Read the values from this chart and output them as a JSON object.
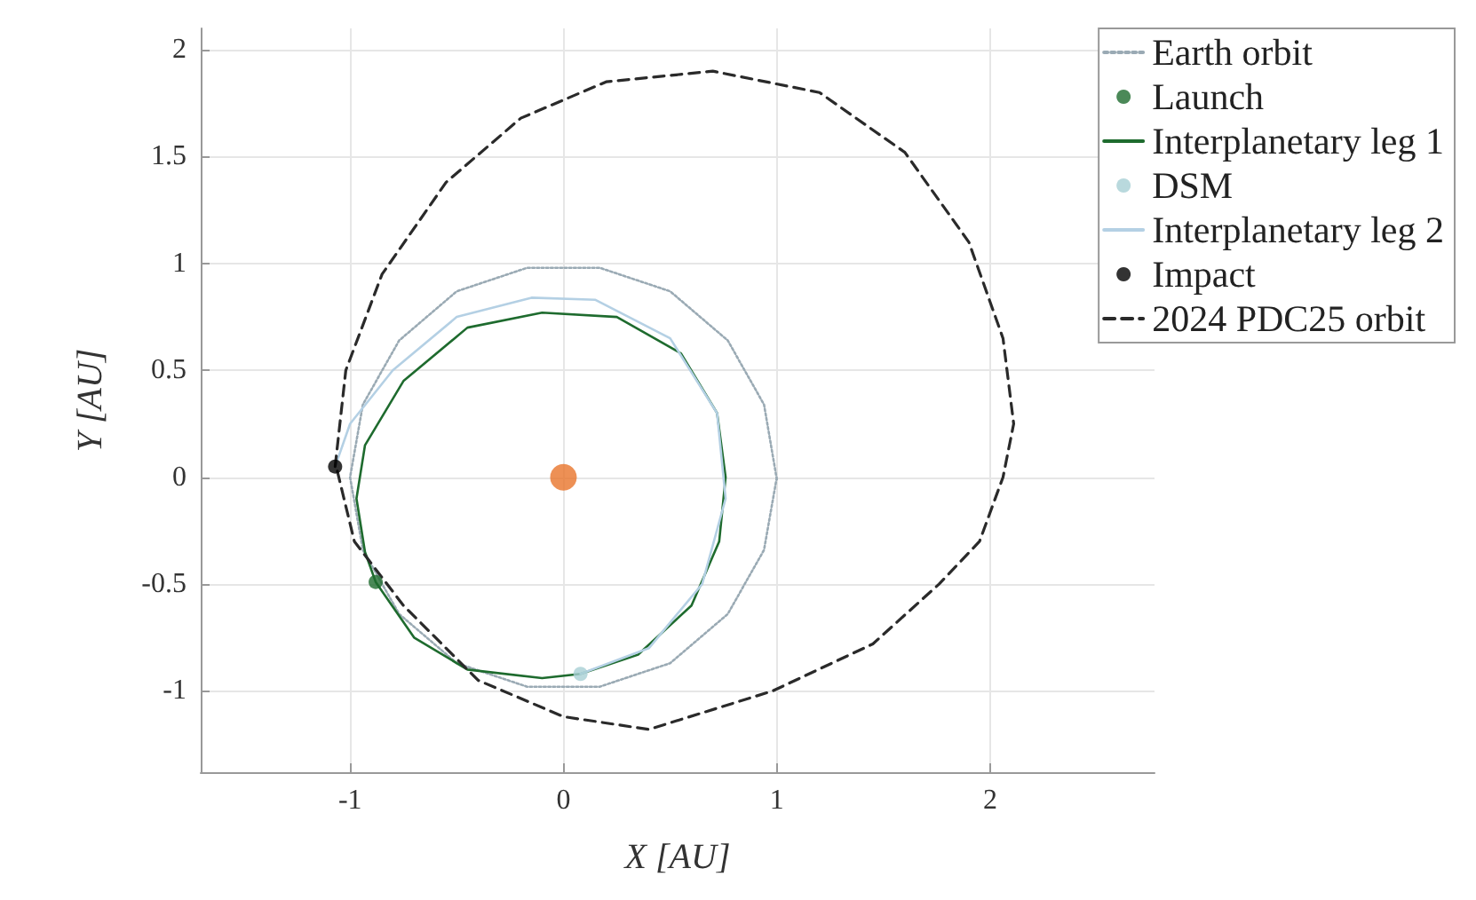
{
  "chart_data": {
    "type": "line",
    "xlabel": "X [AU]",
    "ylabel": "Y [AU]",
    "xlim": [
      -1.7,
      2.77
    ],
    "ylim": [
      -1.38,
      2.1
    ],
    "xticks": [
      -1,
      0,
      1,
      2
    ],
    "yticks": [
      -1,
      -0.5,
      0,
      0.5,
      1,
      1.5,
      2
    ],
    "grid": true,
    "legend": "top right",
    "series": [
      {
        "name": "Earth orbit",
        "color": "#9aaab4",
        "line_style": "dotted",
        "marker": "none",
        "x": [
          1,
          0.94,
          0.77,
          0.5,
          0.17,
          -0.17,
          -0.5,
          -0.77,
          -0.94,
          -1,
          -0.94,
          -0.77,
          -0.5,
          -0.17,
          0.17,
          0.5,
          0.77,
          0.94,
          1
        ],
        "values": [
          -0.01,
          0.34,
          0.64,
          0.87,
          0.98,
          0.98,
          0.87,
          0.64,
          0.34,
          0,
          -0.34,
          -0.64,
          -0.87,
          -0.98,
          -0.98,
          -0.87,
          -0.64,
          -0.34,
          0
        ]
      },
      {
        "name": "Launch",
        "type": "scatter",
        "color": "#1e6b2e",
        "marker": "circle",
        "x": [
          -0.88
        ],
        "values": [
          -0.49
        ]
      },
      {
        "name": "Interplanetary leg 1",
        "color": "#1e6b2e",
        "line_style": "solid",
        "marker": "none",
        "x": [
          -0.88,
          -0.7,
          -0.45,
          -0.1,
          0.08,
          0.35,
          0.6,
          0.73,
          0.76,
          0.72,
          0.55,
          0.25,
          -0.1,
          -0.45,
          -0.75,
          -0.93,
          -0.97,
          -0.93,
          -0.88,
          -0.7,
          -0.45,
          -0.1,
          0.08
        ],
        "values": [
          -0.49,
          -0.75,
          -0.9,
          -0.94,
          -0.92,
          -0.83,
          -0.6,
          -0.3,
          0,
          0.3,
          0.58,
          0.75,
          0.77,
          0.7,
          0.45,
          0.15,
          -0.1,
          -0.35,
          -0.49,
          -0.75,
          -0.9,
          -0.94,
          -0.92
        ]
      },
      {
        "name": "DSM",
        "type": "scatter",
        "color": "#a8d0d4",
        "marker": "circle",
        "x": [
          0.08
        ],
        "values": [
          -0.92
        ]
      },
      {
        "name": "Interplanetary leg 2",
        "color": "#b4d0e4",
        "line_style": "solid",
        "marker": "none",
        "x": [
          0.08,
          0.4,
          0.65,
          0.76,
          0.72,
          0.5,
          0.15,
          -0.15,
          -0.5,
          -0.8,
          -1.0,
          -1.07
        ],
        "values": [
          -0.92,
          -0.8,
          -0.5,
          -0.1,
          0.3,
          0.65,
          0.83,
          0.84,
          0.75,
          0.5,
          0.25,
          0.05
        ]
      },
      {
        "name": "Impact",
        "type": "scatter",
        "color": "#000000",
        "marker": "circle",
        "x": [
          -1.07
        ],
        "values": [
          0.05
        ]
      },
      {
        "name": "2024 PDC25 orbit",
        "color": "#2a2a2a",
        "line_style": "dashed",
        "marker": "none",
        "x": [
          -1.07,
          -1.02,
          -0.85,
          -0.55,
          -0.2,
          0.2,
          0.7,
          1.2,
          1.6,
          1.9,
          2.06,
          2.11,
          2.06,
          1.95,
          1.76,
          1.45,
          0.98,
          0.4,
          0,
          -0.4,
          -0.75,
          -0.98,
          -1.06
        ],
        "values": [
          0.05,
          0.5,
          0.95,
          1.38,
          1.68,
          1.85,
          1.9,
          1.8,
          1.52,
          1.1,
          0.65,
          0.25,
          0,
          -0.3,
          -0.5,
          -0.78,
          -1.0,
          -1.18,
          -1.12,
          -0.95,
          -0.6,
          -0.3,
          0.03
        ]
      },
      {
        "type": "scatter",
        "color": "#e8742a",
        "marker": "circle",
        "x": [
          0
        ],
        "values": [
          0
        ]
      }
    ]
  }
}
